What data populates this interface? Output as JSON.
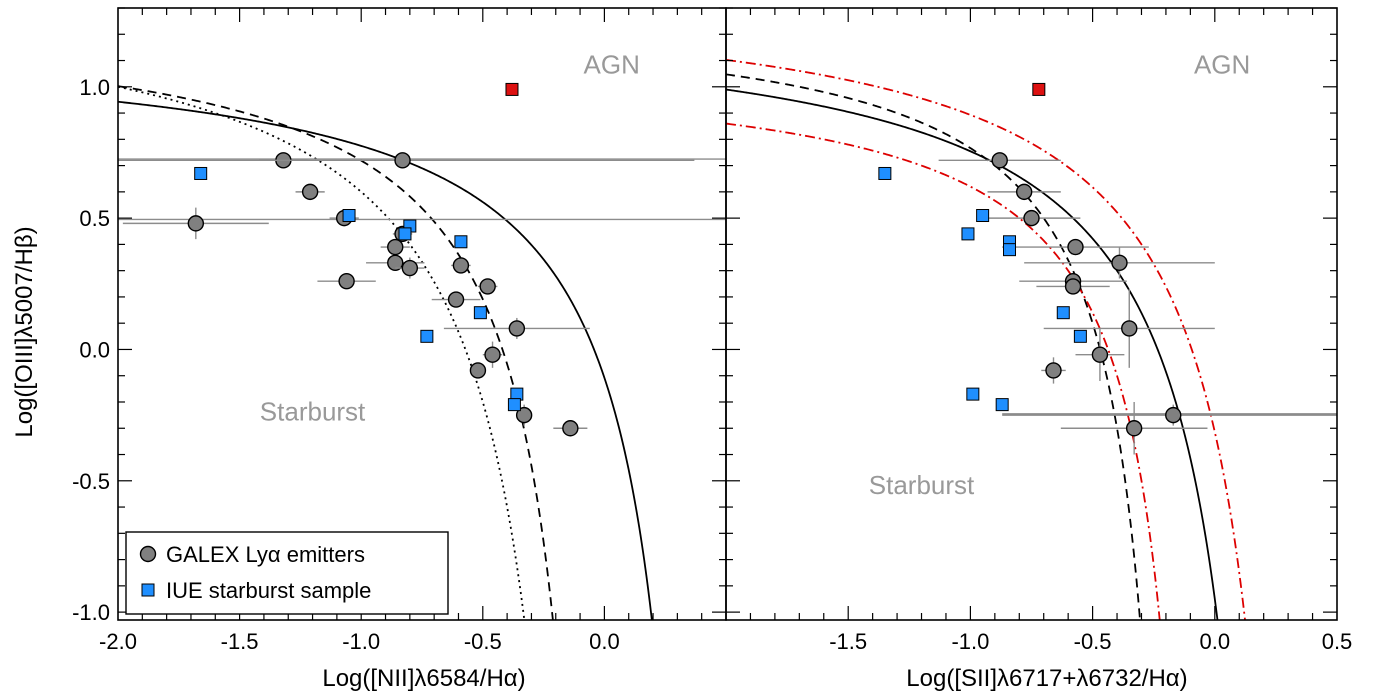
{
  "chart_data": [
    {
      "type": "scatter",
      "panel": "left",
      "xlabel": "Log([NII]λ6584/Hα)",
      "ylabel": "Log([OIII]λ5007/Hβ)",
      "xlim": [
        -2.0,
        0.5
      ],
      "ylim": [
        -1.03,
        1.3
      ],
      "xticks": [
        -2.0,
        -1.5,
        -1.0,
        -0.5,
        0.0
      ],
      "xtick_labels": [
        "-2.0",
        "-1.5",
        "-1.0",
        "-0.5",
        "0.0"
      ],
      "yticks": [
        -1.0,
        -0.5,
        0.0,
        0.5,
        1.0
      ],
      "ytick_labels": [
        "-1.0",
        "-0.5",
        "0.0",
        "0.5",
        "1.0"
      ],
      "region_labels": [
        {
          "text": "AGN",
          "x": 0.03,
          "y": 1.05
        },
        {
          "text": "Starburst",
          "x": -1.2,
          "y": -0.27
        }
      ],
      "curves": [
        {
          "style": "solid",
          "color": "#000000",
          "a": 0.61,
          "b": 0.47,
          "c": 1.19
        },
        {
          "style": "dashed",
          "color": "#000000",
          "a": 0.61,
          "b": 0.05,
          "c": 1.3
        },
        {
          "style": "dotted",
          "color": "#000000",
          "a": 0.8,
          "b": 0.0,
          "c": 1.4
        }
      ],
      "series": [
        {
          "name": "GALEX Lyα emitters",
          "marker": "circle",
          "color": "#808080",
          "points": [
            {
              "x": -1.68,
              "y": 0.48,
              "xerr": 0.3,
              "yerr": 0.06
            },
            {
              "x": -1.32,
              "y": 0.72,
              "xerr": 0.1,
              "yerr": 0.0
            },
            {
              "x": -1.21,
              "y": 0.6,
              "xerr": 0.06,
              "yerr": 0.0
            },
            {
              "x": -1.07,
              "y": 0.5,
              "xerr": 0.06,
              "yerr": 0.0
            },
            {
              "x": -1.06,
              "y": 0.26,
              "xerr": 0.12,
              "yerr": 0.0
            },
            {
              "x": -0.83,
              "y": 0.72,
              "xerr": 1.2,
              "yerr": 0.0
            },
            {
              "x": -0.83,
              "y": 0.44,
              "xerr": 0.04,
              "yerr": 0.0
            },
            {
              "x": -0.86,
              "y": 0.39,
              "xerr": 0.06,
              "yerr": 0.0
            },
            {
              "x": -0.86,
              "y": 0.33,
              "xerr": 0.12,
              "yerr": 0.0
            },
            {
              "x": -0.8,
              "y": 0.31,
              "xerr": 0.06,
              "yerr": 0.04
            },
            {
              "x": -0.59,
              "y": 0.32,
              "xerr": 0.04,
              "yerr": 0.0
            },
            {
              "x": -0.61,
              "y": 0.19,
              "xerr": 0.1,
              "yerr": 0.0
            },
            {
              "x": -0.48,
              "y": 0.24,
              "xerr": 0.04,
              "yerr": 0.0
            },
            {
              "x": -0.36,
              "y": 0.08,
              "xerr": 0.3,
              "yerr": 0.04
            },
            {
              "x": -0.46,
              "y": -0.02,
              "xerr": 0.04,
              "yerr": 0.05
            },
            {
              "x": -0.52,
              "y": -0.08,
              "xerr": 0.0,
              "yerr": 0.0
            },
            {
              "x": -0.33,
              "y": -0.25,
              "xerr": 0.0,
              "yerr": 0.04
            },
            {
              "x": -0.14,
              "y": -0.3,
              "xerr": 0.07,
              "yerr": 0.03
            }
          ]
        },
        {
          "name": "IUE starburst sample",
          "marker": "square",
          "color": "#1f8fff",
          "points": [
            {
              "x": -1.66,
              "y": 0.67
            },
            {
              "x": -1.05,
              "y": 0.51
            },
            {
              "x": -0.8,
              "y": 0.47
            },
            {
              "x": -0.82,
              "y": 0.44
            },
            {
              "x": -0.59,
              "y": 0.41
            },
            {
              "x": -0.51,
              "y": 0.14
            },
            {
              "x": -0.73,
              "y": 0.05
            },
            {
              "x": -0.36,
              "y": -0.17
            },
            {
              "x": -0.37,
              "y": -0.21
            }
          ]
        },
        {
          "name": "",
          "marker": "square",
          "color": "#dd1111",
          "points": [
            {
              "x": -0.38,
              "y": 0.99
            }
          ]
        }
      ],
      "horizontal_lines": [
        {
          "y": 0.725,
          "x0": -2.0,
          "x1": 0.5
        },
        {
          "y": 0.495,
          "x0": -2.0,
          "x1": 0.5
        }
      ],
      "legend": {
        "placement": "bottom-left",
        "entries": [
          {
            "label": "GALEX Lyα emitters",
            "marker": "circle",
            "color": "#808080"
          },
          {
            "label": "IUE starburst sample",
            "marker": "square",
            "color": "#1f8fff"
          }
        ]
      }
    },
    {
      "type": "scatter",
      "panel": "right",
      "xlabel": "Log([SII]λ6717+λ6732/Hα)",
      "xlim": [
        -2.0,
        0.5
      ],
      "ylim": [
        -1.03,
        1.3
      ],
      "xticks": [
        -1.5,
        -1.0,
        -0.5,
        0.0,
        0.5
      ],
      "xtick_labels": [
        "-1.5",
        "-1.0",
        "-0.5",
        "0.0",
        "0.5"
      ],
      "region_labels": [
        {
          "text": "AGN",
          "x": 0.03,
          "y": 1.05
        },
        {
          "text": "Starburst",
          "x": -1.2,
          "y": -0.55
        }
      ],
      "curves": [
        {
          "style": "solid",
          "color": "#000000",
          "a": 0.72,
          "b": 0.32,
          "c": 1.3
        },
        {
          "style": "dashed",
          "color": "#000000",
          "a": 0.48,
          "b": -0.1,
          "c": 1.3
        },
        {
          "style": "dashdot",
          "color": "#dd0000",
          "a": 0.72,
          "b": 0.42,
          "c": 1.4
        },
        {
          "style": "dashdot",
          "color": "#dd0000",
          "a": 0.48,
          "b": 0.0,
          "c": 1.1
        }
      ],
      "series": [
        {
          "name": "GALEX Lyα emitters",
          "marker": "circle",
          "color": "#808080",
          "points": [
            {
              "x": -0.88,
              "y": 0.72,
              "xerr": 0.25,
              "yerr": 0.0
            },
            {
              "x": -0.78,
              "y": 0.6,
              "xerr": 0.15,
              "yerr": 0.0
            },
            {
              "x": -0.75,
              "y": 0.5,
              "xerr": 0.2,
              "yerr": 0.0
            },
            {
              "x": -0.57,
              "y": 0.39,
              "xerr": 0.3,
              "yerr": 0.0
            },
            {
              "x": -0.39,
              "y": 0.33,
              "xerr": 0.39,
              "yerr": 0.06
            },
            {
              "x": -0.58,
              "y": 0.26,
              "xerr": 0.22,
              "yerr": 0.03
            },
            {
              "x": -0.58,
              "y": 0.24,
              "xerr": 0.15,
              "yerr": 0.0
            },
            {
              "x": -0.35,
              "y": 0.08,
              "xerr": 0.35,
              "yerr": 0.15
            },
            {
              "x": -0.47,
              "y": -0.02,
              "xerr": 0.1,
              "yerr": 0.1
            },
            {
              "x": -0.66,
              "y": -0.08,
              "xerr": 0.05,
              "yerr": 0.05
            },
            {
              "x": -0.17,
              "y": -0.25,
              "xerr": 0.7,
              "yerr": 0.04
            },
            {
              "x": -0.33,
              "y": -0.3,
              "xerr": 0.3,
              "yerr": 0.1
            }
          ]
        },
        {
          "name": "IUE starburst sample",
          "marker": "square",
          "color": "#1f8fff",
          "points": [
            {
              "x": -1.35,
              "y": 0.67
            },
            {
              "x": -0.95,
              "y": 0.51
            },
            {
              "x": -1.01,
              "y": 0.44
            },
            {
              "x": -0.84,
              "y": 0.41
            },
            {
              "x": -0.84,
              "y": 0.38
            },
            {
              "x": -0.62,
              "y": 0.14
            },
            {
              "x": -0.55,
              "y": 0.05
            },
            {
              "x": -0.99,
              "y": -0.17
            },
            {
              "x": -0.87,
              "y": -0.21
            }
          ]
        },
        {
          "name": "",
          "marker": "square",
          "color": "#dd1111",
          "points": [
            {
              "x": -0.72,
              "y": 0.99
            }
          ]
        }
      ],
      "horizontal_lines": [
        {
          "y": -0.245,
          "x0": -0.87,
          "x1": 0.5
        }
      ]
    }
  ]
}
